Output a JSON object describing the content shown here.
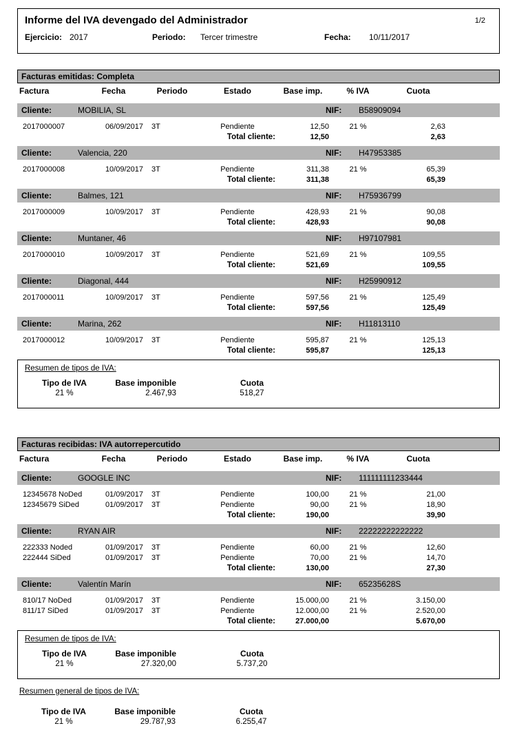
{
  "report": {
    "title": "Informe del IVA devengado del Administrador",
    "page": "1/2",
    "fields": {
      "ejercicio_label": "Ejercicio:",
      "ejercicio": "2017",
      "periodo_label": "Periodo:",
      "periodo": "Tercer trimestre",
      "fecha_label": "Fecha:",
      "fecha": "10/11/2017"
    }
  },
  "labels": {
    "cliente": "Cliente:",
    "nif": "NIF:",
    "total_cliente": "Total cliente:"
  },
  "colors": {
    "bar_gray": "#b4b4b4",
    "border_black": "#000000"
  },
  "columns": [
    "Factura",
    "Fecha",
    "Periodo",
    "Estado",
    "Base imp.",
    "% IVA",
    "Cuota"
  ],
  "sections": [
    {
      "title": "Facturas emitidas: Completa",
      "clients": [
        {
          "name": "MOBILIA, SL",
          "nif": "B58909094",
          "invoices": [
            [
              "2017000007",
              "06/09/2017",
              "3T",
              "Pendiente",
              "12,50",
              "21 %",
              "2,63"
            ]
          ],
          "total_base": "12,50",
          "total_cuota": "2,63"
        },
        {
          "name": "Valencia, 220",
          "nif": "H47953385",
          "invoices": [
            [
              "2017000008",
              "10/09/2017",
              "3T",
              "Pendiente",
              "311,38",
              "21 %",
              "65,39"
            ]
          ],
          "total_base": "311,38",
          "total_cuota": "65,39"
        },
        {
          "name": "Balmes, 121",
          "nif": "H75936799",
          "invoices": [
            [
              "2017000009",
              "10/09/2017",
              "3T",
              "Pendiente",
              "428,93",
              "21 %",
              "90,08"
            ]
          ],
          "total_base": "428,93",
          "total_cuota": "90,08"
        },
        {
          "name": "Muntaner, 46",
          "nif": "H97107981",
          "invoices": [
            [
              "2017000010",
              "10/09/2017",
              "3T",
              "Pendiente",
              "521,69",
              "21 %",
              "109,55"
            ]
          ],
          "total_base": "521,69",
          "total_cuota": "109,55"
        },
        {
          "name": "Diagonal, 444",
          "nif": "H25990912",
          "invoices": [
            [
              "2017000011",
              "10/09/2017",
              "3T",
              "Pendiente",
              "597,56",
              "21 %",
              "125,49"
            ]
          ],
          "total_base": "597,56",
          "total_cuota": "125,49"
        },
        {
          "name": "Marina, 262",
          "nif": "H11813110",
          "invoices": [
            [
              "2017000012",
              "10/09/2017",
              "3T",
              "Pendiente",
              "595,87",
              "21 %",
              "125,13"
            ]
          ],
          "total_base": "595,87",
          "total_cuota": "125,13"
        }
      ],
      "resumen": {
        "title": "Resumen de tipos de IVA:",
        "headers": [
          "Tipo de IVA",
          "Base imponible",
          "Cuota"
        ],
        "rows": [
          [
            "21 %",
            "2.467,93",
            "518,27"
          ]
        ]
      }
    },
    {
      "title": "Facturas recibidas: IVA autorrepercutido",
      "clients": [
        {
          "name": "GOOGLE INC",
          "nif": "111111111233444",
          "invoices": [
            [
              "12345678 NoDed",
              "01/09/2017",
              "3T",
              "Pendiente",
              "100,00",
              "21 %",
              "21,00"
            ],
            [
              "12345679 SiDed",
              "01/09/2017",
              "3T",
              "Pendiente",
              "90,00",
              "21 %",
              "18,90"
            ]
          ],
          "total_base": "190,00",
          "total_cuota": "39,90"
        },
        {
          "name": "RYAN AIR",
          "nif": "22222222222222",
          "invoices": [
            [
              "222333 Noded",
              "01/09/2017",
              "3T",
              "Pendiente",
              "60,00",
              "21 %",
              "12,60"
            ],
            [
              "222444 SiDed",
              "01/09/2017",
              "3T",
              "Pendiente",
              "70,00",
              "21 %",
              "14,70"
            ]
          ],
          "total_base": "130,00",
          "total_cuota": "27,30"
        },
        {
          "name": "Valentín Marín",
          "nif": "65235628S",
          "invoices": [
            [
              "810/17 NoDed",
              "01/09/2017",
              "3T",
              "Pendiente",
              "15.000,00",
              "21 %",
              "3.150,00"
            ],
            [
              "811/17 SiDed",
              "01/09/2017",
              "3T",
              "Pendiente",
              "12.000,00",
              "21 %",
              "2.520,00"
            ]
          ],
          "total_base": "27.000,00",
          "total_cuota": "5.670,00"
        }
      ],
      "resumen": {
        "title": "Resumen de tipos de IVA:",
        "headers": [
          "Tipo de IVA",
          "Base imponible",
          "Cuota"
        ],
        "rows": [
          [
            "21 %",
            "27.320,00",
            "5.737,20"
          ]
        ]
      }
    }
  ],
  "general_summary": {
    "title": "Resumen general de tipos de IVA:",
    "headers": [
      "Tipo de IVA",
      "Base imponible",
      "Cuota"
    ],
    "rows": [
      [
        "21 %",
        "29.787,93",
        "6.255,47"
      ]
    ]
  }
}
